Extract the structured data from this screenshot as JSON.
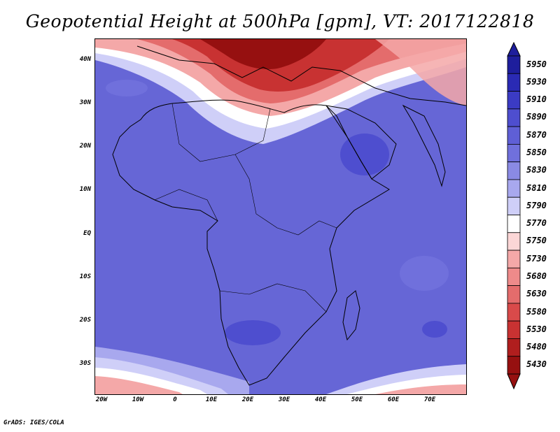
{
  "title": "Geopotential Height at 500hPa [gpm], VT: 2017122818",
  "credit": "GrADS: IGES/COLA",
  "y_ticks": [
    "40N",
    "30N",
    "20N",
    "10N",
    "EQ",
    "10S",
    "20S",
    "30S"
  ],
  "x_ticks": [
    "20W",
    "10W",
    "0",
    "10E",
    "20E",
    "30E",
    "40E",
    "50E",
    "60E",
    "70E"
  ],
  "colorbar": {
    "labels": [
      "5950",
      "5930",
      "5910",
      "5890",
      "5870",
      "5850",
      "5830",
      "5810",
      "5790",
      "5770",
      "5750",
      "5730",
      "5680",
      "5630",
      "5580",
      "5530",
      "5480",
      "5430"
    ],
    "colors": [
      "#1e1e9c",
      "#2a2ab4",
      "#3b3bc4",
      "#4e4ecf",
      "#5f5fd6",
      "#7070dc",
      "#8a8ae4",
      "#a8a8ee",
      "#cfcff8",
      "#ffffff",
      "#fbd6d6",
      "#f4a8a8",
      "#ee8a8a",
      "#e46c6c",
      "#d94a4a",
      "#c83232",
      "#b01e1e",
      "#961010"
    ]
  }
}
